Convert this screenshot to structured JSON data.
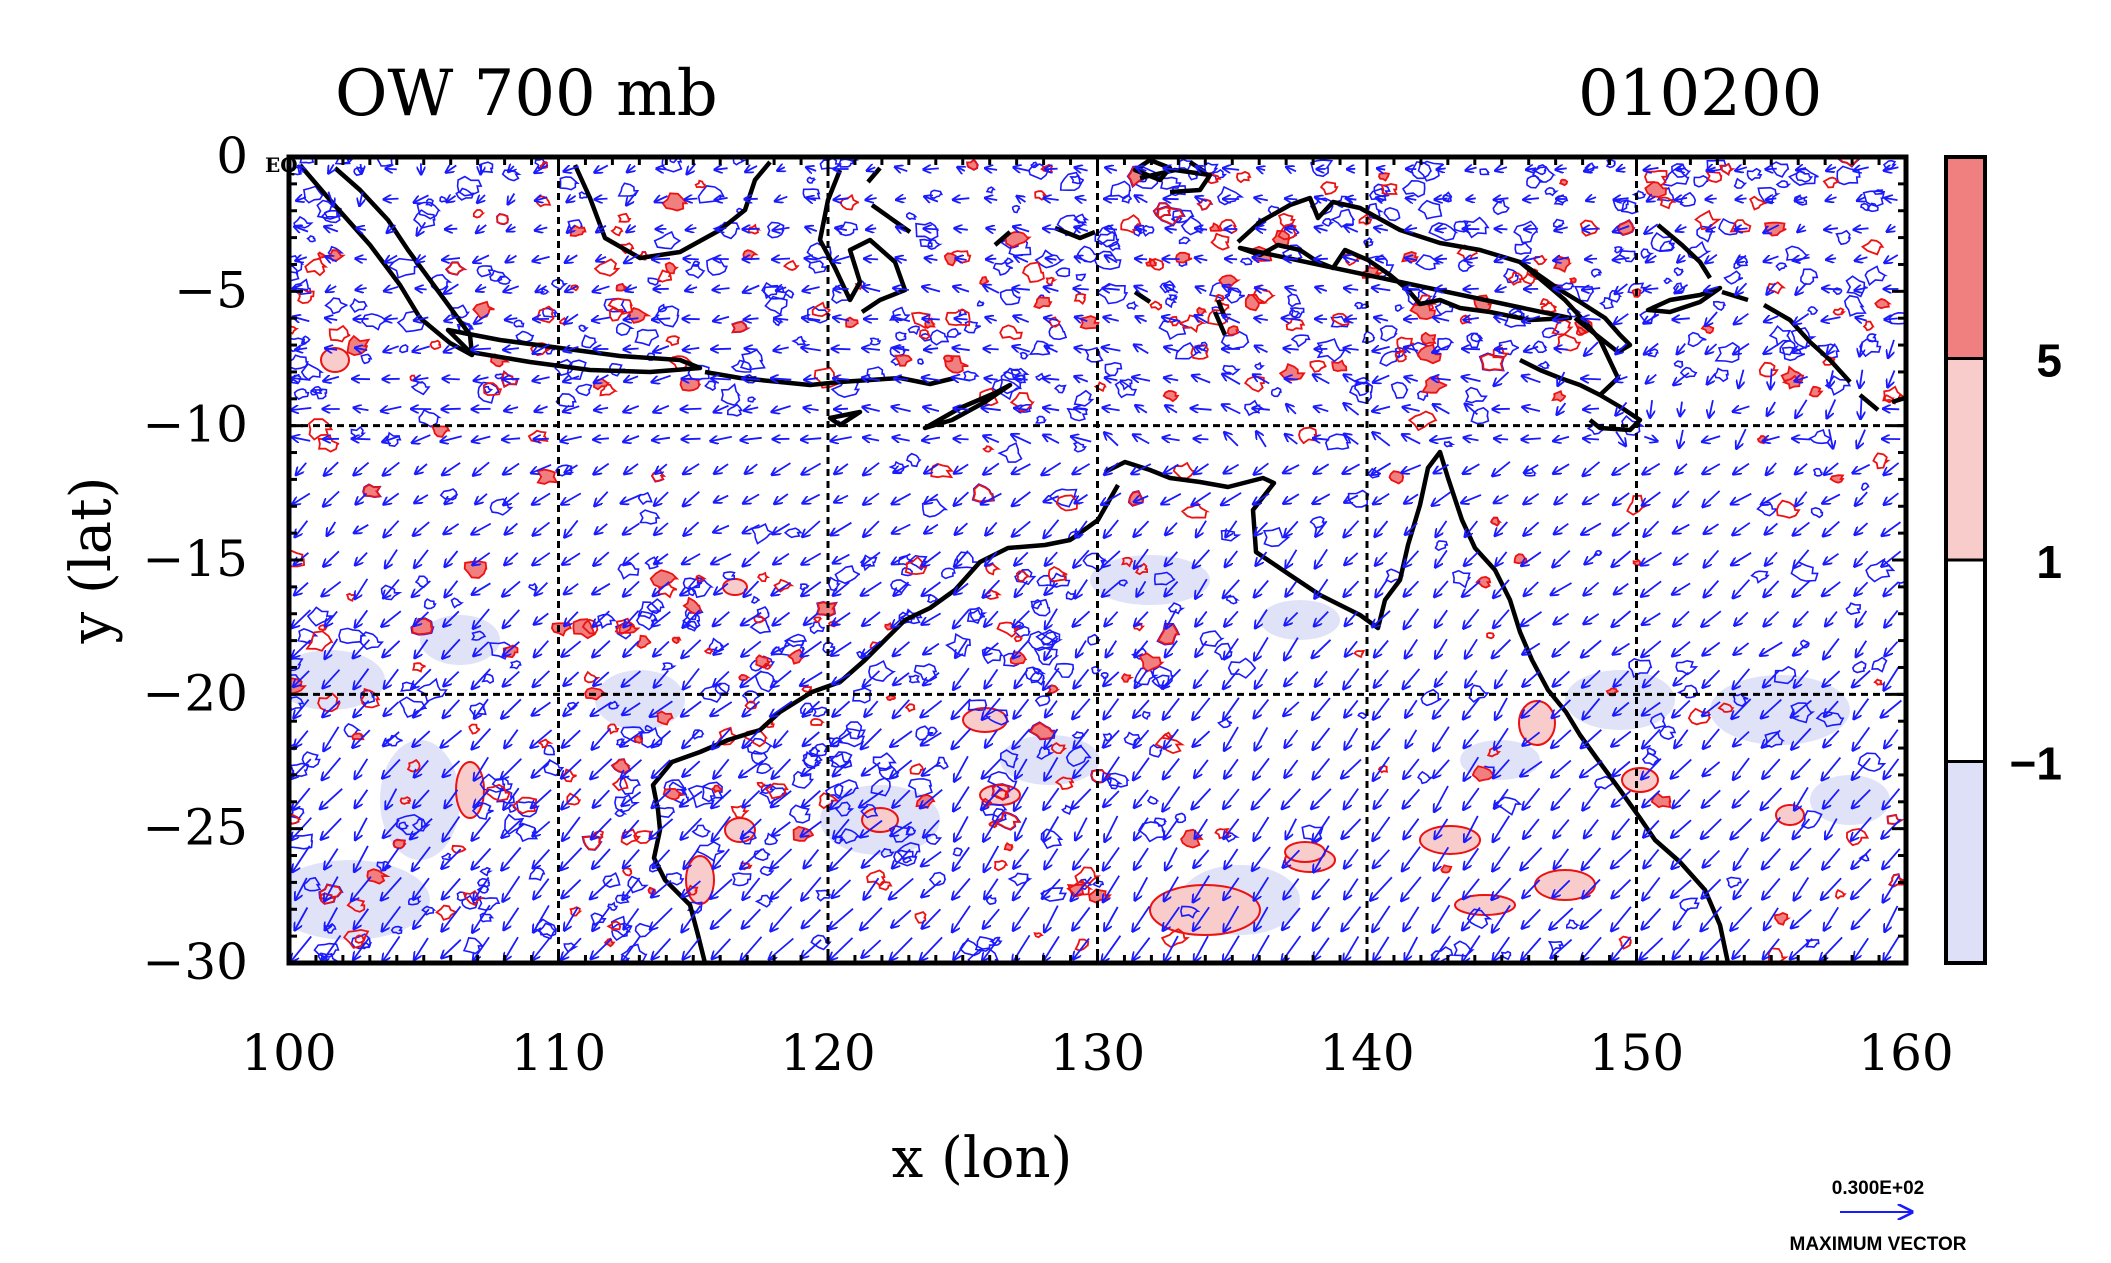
{
  "header": {
    "title": "OW 700 mb",
    "datetime": "010200",
    "eq_label": "EQ"
  },
  "chart_data": {
    "type": "map",
    "xlabel": "x (lon)",
    "ylabel": "y (lat)",
    "xlim": [
      100,
      160
    ],
    "ylim": [
      -30,
      0
    ],
    "x_ticks": [
      "100",
      "110",
      "120",
      "130",
      "140",
      "150",
      "160"
    ],
    "y_ticks": [
      "0",
      "−5",
      "−10",
      "−15",
      "−20",
      "−25",
      "−30"
    ],
    "grid_lon": [
      110,
      120,
      130,
      140,
      150
    ],
    "grid_lat": [
      -10,
      -20
    ],
    "grid": true,
    "colorbar": {
      "labels": [
        "5",
        "1",
        "−1"
      ],
      "levels": [
        5,
        1,
        -1
      ],
      "colors": [
        "#f08080",
        "#f9cccc",
        "#ffffff",
        "#dde0f7"
      ]
    },
    "vector_legend": {
      "magnitude": "0.300E+02",
      "caption": "MAXIMUM VECTOR"
    },
    "colors": {
      "vectors": "#1a1aff",
      "positive_contours": "#ee1111",
      "coastline": "#000000"
    }
  }
}
